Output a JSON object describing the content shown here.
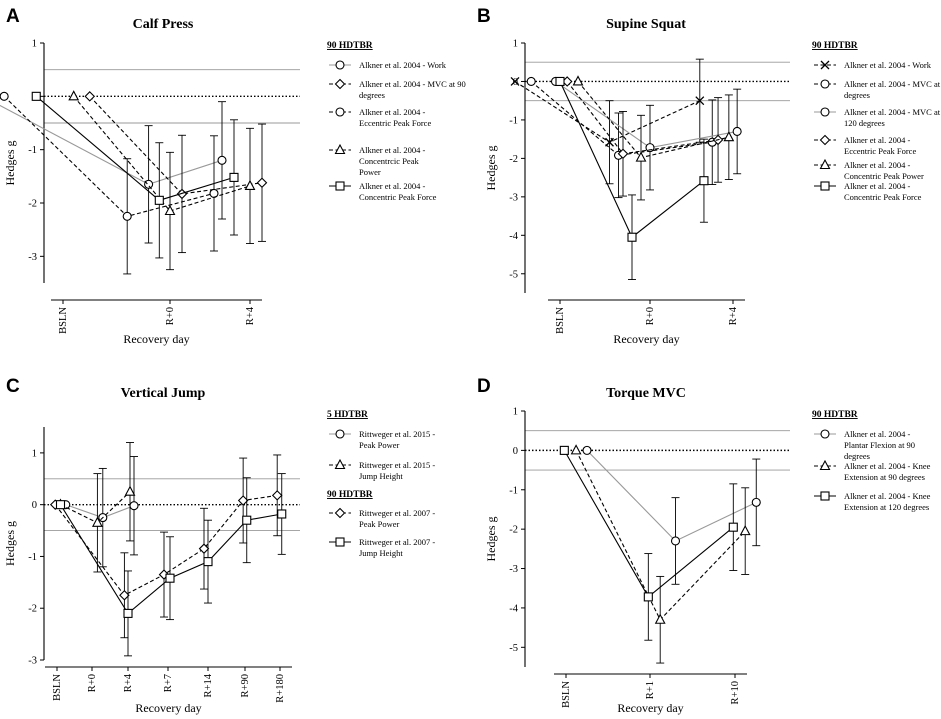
{
  "chart_data": [
    {
      "panel": "A",
      "type": "line",
      "title": "Calf Press",
      "xlabel": "Recovery day",
      "ylabel": "Hedges g",
      "ylim": [
        -3.5,
        1
      ],
      "yticks": [
        1,
        0,
        -1,
        -2,
        -3
      ],
      "categories": [
        "BSLN",
        "R+0",
        "R+4"
      ],
      "reference_lines": [
        0.5,
        -0.5
      ],
      "legend": [
        {
          "heading": "90 HDTBR",
          "entries": [
            0,
            1,
            2,
            3,
            4
          ]
        }
      ],
      "series": [
        {
          "name": "Alkner et al. 2004 - Work",
          "marker": "circle",
          "dash": "solid",
          "color": "#999999",
          "x": [
            -0.75,
            0.8,
            1.65
          ],
          "y": [
            0,
            -1.65,
            -1.2
          ],
          "err": [
            null,
            1.1,
            1.1
          ]
        },
        {
          "name": "Alkner et al. 2004 - MVC at 90 degrees",
          "marker": "diamond",
          "dash": "dashed",
          "color": "#000000",
          "x": [
            0.25,
            1.15,
            2.15
          ],
          "y": [
            0,
            -1.83,
            -1.62
          ],
          "err": [
            null,
            1.1,
            1.1
          ]
        },
        {
          "name": "Alkner et al. 2004 - Eccentric Peak Force",
          "marker": "circle",
          "dash": "dashed",
          "color": "#000000",
          "x": [
            -0.55,
            0.6,
            1.55
          ],
          "y": [
            0,
            -2.25,
            -1.82
          ],
          "err": [
            null,
            1.08,
            1.08
          ]
        },
        {
          "name": "Alkner et al. 2004 - Concentric Peak Power",
          "marker": "triangle",
          "dash": "dashed",
          "color": "#000000",
          "x": [
            0.1,
            1.0,
            2.0
          ],
          "y": [
            0,
            -2.15,
            -1.68
          ],
          "err": [
            null,
            1.1,
            1.08
          ]
        },
        {
          "name": "Alkner et al. 2004 - Concentric Peak Force",
          "marker": "square",
          "dash": "solid",
          "color": "#000000",
          "x": [
            -0.25,
            0.9,
            1.8
          ],
          "y": [
            0,
            -1.95,
            -1.52
          ],
          "err": [
            null,
            1.08,
            1.08
          ]
        }
      ]
    },
    {
      "panel": "B",
      "type": "line",
      "title": "Supine Squat",
      "xlabel": "Recovery day",
      "ylabel": "Hedges g",
      "ylim": [
        -5.5,
        1
      ],
      "yticks": [
        1,
        0,
        -1,
        -2,
        -3,
        -4,
        -5
      ],
      "categories": [
        "BSLN",
        "R+0",
        "R+4"
      ],
      "reference_lines": [
        0.5,
        -0.5
      ],
      "legend": [
        {
          "heading": "90 HDTBR",
          "entries": [
            0,
            1,
            2,
            3,
            4,
            5
          ]
        }
      ],
      "series": [
        {
          "name": "Alkner et al. 2004 - Work",
          "marker": "cross",
          "dash": "dashed",
          "color": "#000000",
          "x": [
            -0.5,
            0.55,
            1.6
          ],
          "y": [
            0,
            -1.58,
            -0.5
          ],
          "err": [
            null,
            1.08,
            1.08
          ]
        },
        {
          "name": "Alkner et al. 2004 - MVC at 90 degrees",
          "marker": "circle",
          "dash": "dashed",
          "color": "#000000",
          "x": [
            -0.32,
            0.65,
            1.75
          ],
          "y": [
            0,
            -1.92,
            -1.58
          ],
          "err": [
            null,
            1.1,
            1.1
          ]
        },
        {
          "name": "Alkner et al. 2004 - MVC at 120 degrees",
          "marker": "circle",
          "dash": "solid",
          "color": "#999999",
          "x": [
            -0.05,
            1.0,
            2.05
          ],
          "y": [
            0,
            -1.72,
            -1.3
          ],
          "err": [
            null,
            1.1,
            1.1
          ]
        },
        {
          "name": "Alkner et al. 2004 - Eccentric Peak Force",
          "marker": "diamond",
          "dash": "dashed",
          "color": "#000000",
          "x": [
            0.08,
            0.7,
            1.82
          ],
          "y": [
            0,
            -1.88,
            -1.52
          ],
          "err": [
            null,
            1.1,
            1.1
          ]
        },
        {
          "name": "Alkner et al. 2004 - Concentric Peak Power",
          "marker": "triangle",
          "dash": "dashed",
          "color": "#000000",
          "x": [
            0.2,
            0.9,
            1.95
          ],
          "y": [
            0,
            -1.98,
            -1.45
          ],
          "err": [
            null,
            1.1,
            1.1
          ]
        },
        {
          "name": "Alkner et al. 2004 - Concentric Peak Force",
          "marker": "square",
          "dash": "solid",
          "color": "#000000",
          "x": [
            0.0,
            0.8,
            1.65
          ],
          "y": [
            0,
            -4.05,
            -2.58
          ],
          "err": [
            null,
            1.1,
            1.08
          ]
        }
      ]
    },
    {
      "panel": "C",
      "type": "line",
      "title": "Vertical Jump",
      "xlabel": "Recovery day",
      "ylabel": "Hedges g",
      "ylim": [
        -3,
        1.5
      ],
      "yticks": [
        1,
        0,
        -1,
        -2,
        -3
      ],
      "categories": [
        "BSLN",
        "R+0",
        "R+4",
        "R+7",
        "R+14",
        "R+90",
        "R+180"
      ],
      "reference_lines": [
        0.5,
        -0.5
      ],
      "legend": [
        {
          "heading": "5 HDTBR",
          "entries": [
            0,
            1
          ]
        },
        {
          "heading": "90 HDTBR",
          "entries": [
            2,
            3
          ]
        }
      ],
      "series": [
        {
          "name": "Rittweger et al. 2015 - Peak Power",
          "marker": "circle",
          "dash": "solid",
          "color": "#999999",
          "x": [
            0.25,
            1.3,
            2.15
          ],
          "y": [
            0,
            -0.25,
            -0.02
          ],
          "err": [
            null,
            0.95,
            0.95
          ]
        },
        {
          "name": "Rittweger et al. 2015 - Jump Height",
          "marker": "triangle",
          "dash": "dashed",
          "color": "#000000",
          "x": [
            0.1,
            1.15,
            2.05
          ],
          "y": [
            0,
            -0.35,
            0.25
          ],
          "err": [
            null,
            0.95,
            0.95
          ]
        },
        {
          "name": "Rittweger et al. 2007 - Peak Power",
          "marker": "diamond",
          "dash": "dashed",
          "color": "#000000",
          "x": [
            -0.05,
            1.9,
            2.9,
            3.9,
            4.95,
            5.92
          ],
          "y": [
            0,
            -1.75,
            -1.35,
            -0.85,
            0.08,
            0.18
          ],
          "err": [
            null,
            0.82,
            0.82,
            0.78,
            0.82,
            0.78
          ]
        },
        {
          "name": "Rittweger et al. 2007 - Jump Height",
          "marker": "square",
          "dash": "solid",
          "color": "#000000",
          "x": [
            0.1,
            2.0,
            3.05,
            4.0,
            5.05,
            6.05
          ],
          "y": [
            0,
            -2.1,
            -1.42,
            -1.1,
            -0.3,
            -0.18
          ],
          "err": [
            null,
            0.82,
            0.8,
            0.8,
            0.82,
            0.78
          ]
        }
      ]
    },
    {
      "panel": "D",
      "type": "line",
      "title": "Torque MVC",
      "xlabel": "Recovery day",
      "ylabel": "Hedges g",
      "ylim": [
        -5.5,
        1
      ],
      "yticks": [
        1,
        0,
        -1,
        -2,
        -3,
        -4,
        -5
      ],
      "categories": [
        "BSLN",
        "R+1",
        "R+10"
      ],
      "reference_lines": [
        0.5,
        -0.5
      ],
      "legend": [
        {
          "heading": "90 HDTBR",
          "entries": [
            0,
            1,
            2
          ]
        }
      ],
      "series": [
        {
          "name": "Alkner et al. 2004 - Plantar Flexion at 90 degrees",
          "marker": "circle",
          "dash": "solid",
          "color": "#999999",
          "x": [
            0.25,
            1.3,
            2.25
          ],
          "y": [
            0,
            -2.3,
            -1.32
          ],
          "err": [
            null,
            1.1,
            1.1
          ]
        },
        {
          "name": "Alkner et al. 2004 - Knee Extension at 90 degrees",
          "marker": "triangle",
          "dash": "dashed",
          "color": "#000000",
          "x": [
            0.12,
            1.12,
            2.12
          ],
          "y": [
            0,
            -4.3,
            -2.05
          ],
          "err": [
            null,
            1.1,
            1.1
          ]
        },
        {
          "name": "Alkner et al. 2004 - Knee Extension at 120 degrees",
          "marker": "square",
          "dash": "solid",
          "color": "#000000",
          "x": [
            -0.02,
            0.98,
            1.98
          ],
          "y": [
            0,
            -3.72,
            -1.95
          ],
          "err": [
            null,
            1.1,
            1.1
          ]
        }
      ]
    }
  ],
  "legend_text": {
    "A": [
      [
        "Alkner et al. 2004 - Work"
      ],
      [
        "Alkner et al. 2004 - MVC at 90",
        "degrees"
      ],
      [
        "Alkner et al. 2004 -",
        "Eccentric Peak Force"
      ],
      [
        "Alkner et al. 2004 -",
        "Concentrcic Peak",
        "Power"
      ],
      [
        "Alkner et al. 2004 -",
        "Concentric Peak Force"
      ]
    ],
    "B": [
      [
        "Alkner et al. 2004 - Work"
      ],
      [
        "Alkner et al. 2004 - MVC at 90",
        "degrees"
      ],
      [
        "Alkner et al. 2004 - MVC at",
        "120 degrees"
      ],
      [
        "Alkner et al. 2004 -",
        "Eccentric Peak Force"
      ],
      [
        "Alkner et al. 2004 -",
        "Concentric Peak Power"
      ],
      [
        "Alkner et al. 2004 -",
        "Concentric Peak Force"
      ]
    ],
    "C": [
      [
        "Rittweger et al. 2015 -",
        "Peak Power"
      ],
      [
        "Rittweger et al. 2015 -",
        "Jump Height"
      ],
      [
        "Rittweger et al. 2007 -",
        "Peak Power"
      ],
      [
        "Rittweger et al. 2007 -",
        "Jump Height"
      ]
    ],
    "D": [
      [
        "Alkner et al. 2004 -",
        "Plantar Flexion at 90",
        "degrees"
      ],
      [
        "Alkner et al. 2004 - Knee",
        "Extension at 90 degrees"
      ],
      [
        "Alkner et al. 2004 - Knee",
        "Extension at 120 degrees"
      ]
    ]
  }
}
